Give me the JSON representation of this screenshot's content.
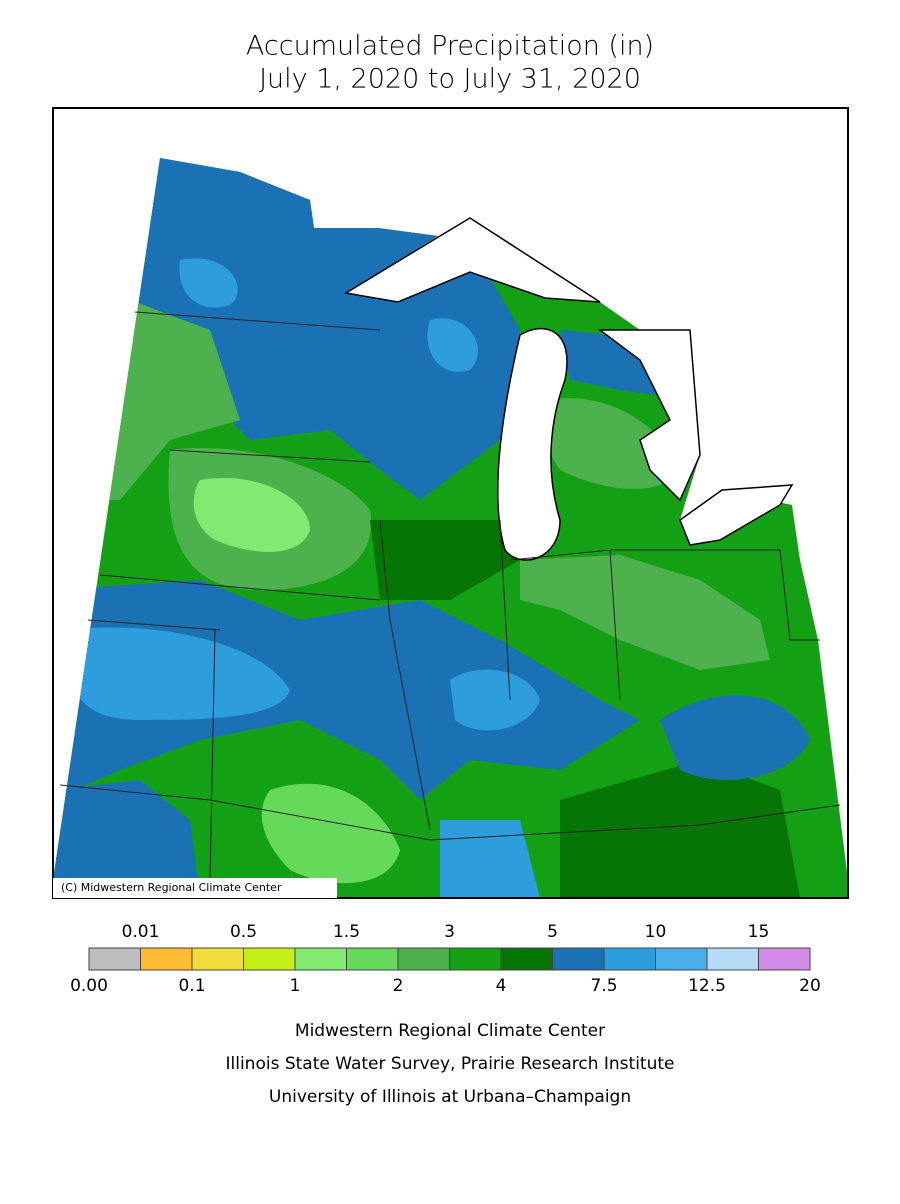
{
  "title": {
    "line1": "Accumulated Precipitation (in)",
    "line2": "July 1, 2020 to July 31, 2020"
  },
  "map": {
    "copyright": "(C) Midwestern Regional Climate Center"
  },
  "legend": {
    "colors": [
      "#bebebe",
      "#ffbb33",
      "#f2de3a",
      "#c3ee17",
      "#82ea70",
      "#64d95a",
      "#4db24d",
      "#14a014",
      "#057505",
      "#1a72b5",
      "#2d9ddd",
      "#48aeea",
      "#b5dbf6",
      "#d38bea"
    ],
    "labels": [
      "0.00",
      "0.01",
      "0.1",
      "0.5",
      "1",
      "1.5",
      "2",
      "3",
      "4",
      "5",
      "7.5",
      "10",
      "12.5",
      "15",
      "20"
    ]
  },
  "footer": [
    "Midwestern Regional Climate Center",
    "Illinois State Water Survey, Prairie Research Institute",
    "University of Illinois at Urbana–Champaign"
  ]
}
